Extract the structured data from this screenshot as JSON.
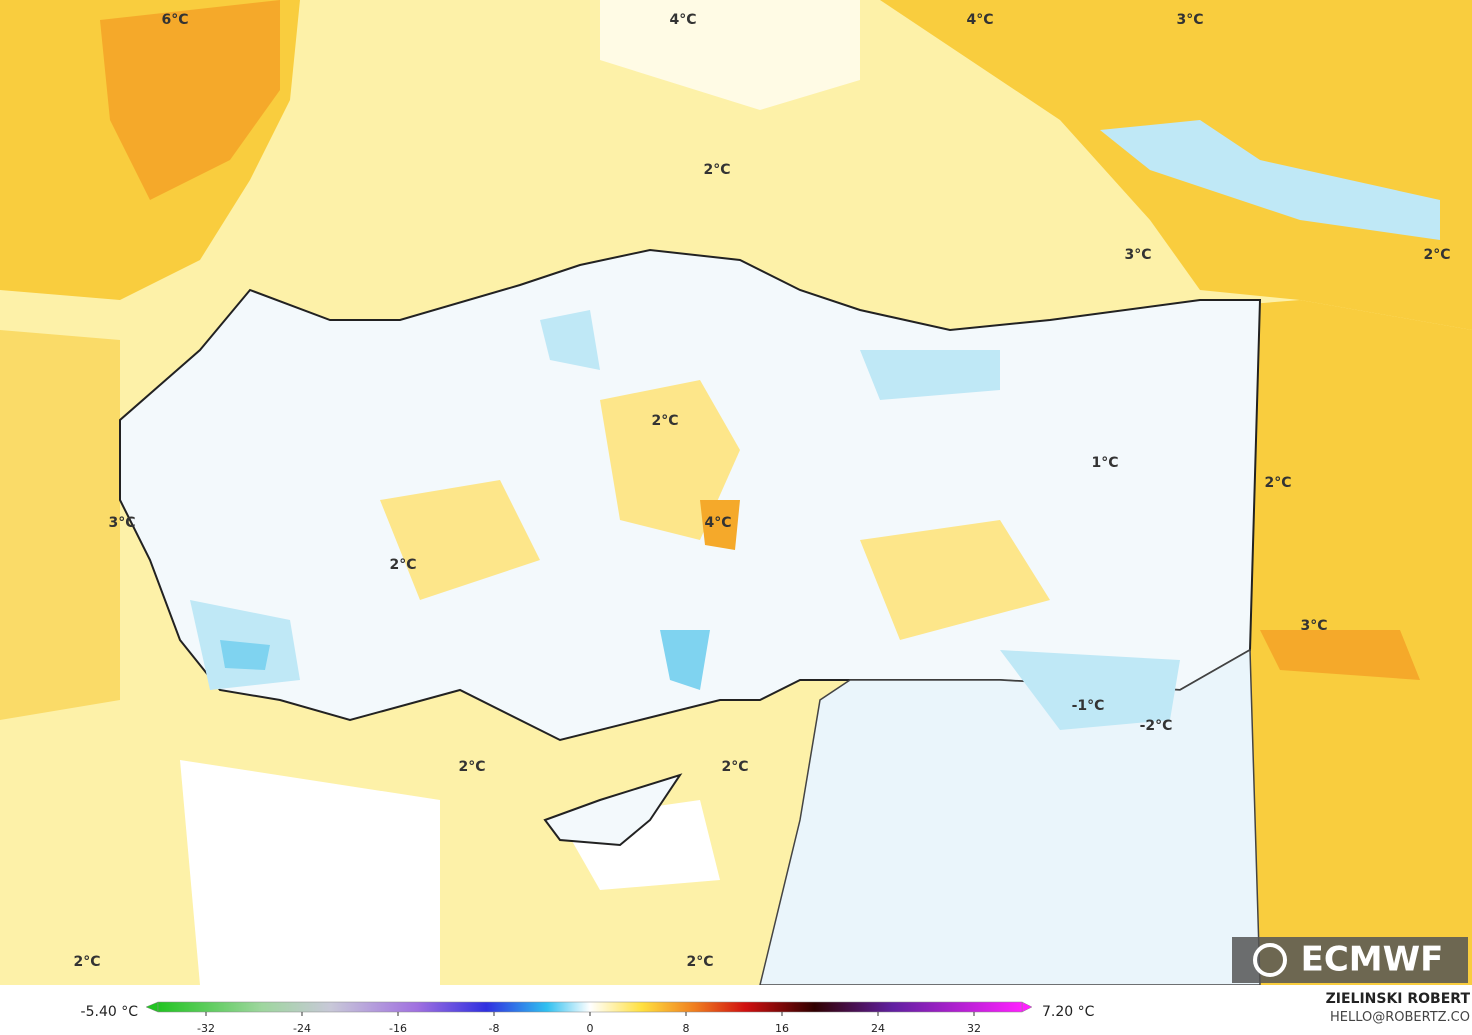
{
  "map_labels": [
    "6°C",
    "4°C",
    "4°C",
    "3°C",
    "2°C",
    "3°C",
    "2°C",
    "2°C",
    "1°C",
    "2°C",
    "3°C",
    "4°C",
    "2°C",
    "3°C",
    "-1°C",
    "-2°C",
    "2°C",
    "2°C",
    "2°C",
    "2°C"
  ],
  "colorbar": {
    "min_label": "-5.40 °C",
    "max_label": "7.20 °C",
    "lim": [
      -36,
      36
    ],
    "ticks": [
      -32,
      -24,
      -16,
      -8,
      0,
      8,
      16,
      24,
      32
    ]
  },
  "credit": {
    "author": "ZIELINSKI ROBERT",
    "contact": "HELLO@ROBERTZ.CO",
    "logo": "ECMWF"
  }
}
